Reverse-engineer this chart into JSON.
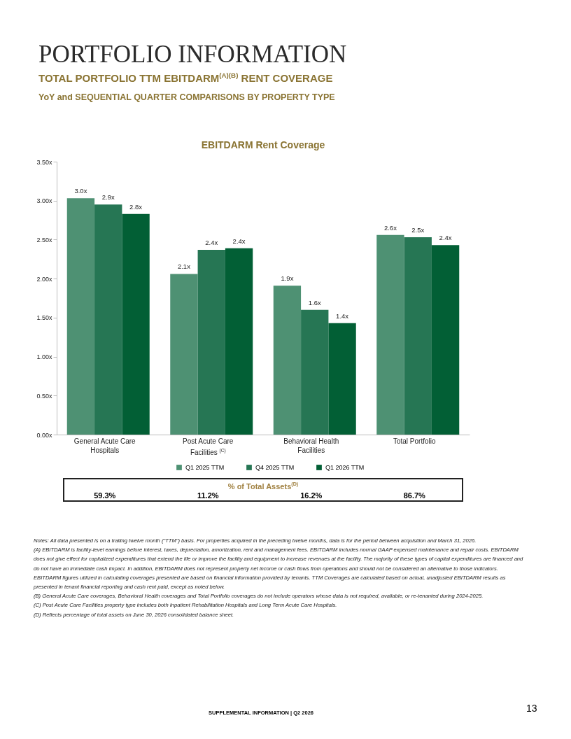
{
  "chart_data": {
    "type": "bar",
    "title": "EBITDARM Rent Coverage",
    "categories": [
      "General Acute Care Hospitals",
      "Post Acute Care Facilities $^{(C)}$",
      "Behavioral Health Facilities",
      "Total Portfolio"
    ],
    "series": [
      {
        "name": "Q1 2025 TTM",
        "color": "#4e9173",
        "values": [
          3.03,
          2.06,
          1.91,
          2.56
        ],
        "value_labels": [
          "3.0x",
          "2.1x",
          "1.9x",
          "2.6x"
        ]
      },
      {
        "name": "Q4 2025 TTM",
        "color": "#267654",
        "values": [
          2.95,
          2.37,
          1.6,
          2.53
        ],
        "value_labels": [
          "2.9x",
          "2.4x",
          "1.6x",
          "2.5x"
        ]
      },
      {
        "name": "Q1 2026 TTM",
        "color": "#025f35",
        "values": [
          2.83,
          2.39,
          1.43,
          2.43
        ],
        "value_labels": [
          "2.8x",
          "2.4x",
          "1.4x",
          "2.4x"
        ]
      }
    ],
    "ylim": [
      0,
      3.5
    ],
    "yticks": [
      {
        "value": 0,
        "label": "0.00x"
      },
      {
        "value": 0.5,
        "label": "0.50x"
      },
      {
        "value": 1,
        "label": "1.00x"
      },
      {
        "value": 1.5,
        "label": "1.50x"
      },
      {
        "value": 2,
        "label": "2.00x"
      },
      {
        "value": 2.5,
        "label": "2.50x"
      },
      {
        "value": 3,
        "label": "3.00x"
      },
      {
        "value": 3.5,
        "label": "3.50x"
      }
    ],
    "legend": "bottom",
    "annotations": [
      "PORTFOLIO INFORMATION",
      "TOTAL PORTFOLIO TTM EBITDARM$^{(A)(B)}$ RENT COVERAGE",
      "YoY and SEQUENTIAL QUARTER COMPARISONS BY PROPERTY TYPE",
      "% of Total Assets$^{(D)}$",
      "59.3%",
      "11.2%",
      "16.2%",
      "86.7%",
      "Notes: All data presented is on a trailing twelve month (\"TTM\") basis. For properties acquired in the preceding twelve months, data is for the period between acquisition and March 31, 2026.",
      "(A) EBITDARM is facility-level earnings before interest, taxes, depreciation, amortization, rent and management fees. EBITDARM includes normal GAAP expensed maintenance and repair costs. EBITDARM does not give effect for capitalized expenditures that extend the life or improve the facility and equipment to increase revenues at the facility. The majority of these types of capital expenditures are financed and do not have an immediate cash impact. In addition, EBITDARM does not represent property net income or cash flows from operations and should not be considered an alternative to those indicators. EBITDARM figures utilized in calculating coverages presented are based on financial information provided by tenants. TTM Coverages are calculated based on actual, unadjusted EBITDARM results as presented in tenant financial reporting and cash rent paid, except as noted below.",
      "(B) General Acute Care coverages, Behavioral Health coverages and Total Portfolio coverages do not include operators whose data is not required, available, or re-tenanted during 2024-2025.",
      "(C) Post Acute Care Facilities property type includes both Inpatient Rehabilitation Hospitals and Long Term Acute Care Hospitals.",
      "(D) Reflects percentage of total assets on June 30, 2026 consolidated balance sheet.",
      "SUPPLEMENTAL INFORMATION | Q2 2026",
      "13"
    ]
  }
}
